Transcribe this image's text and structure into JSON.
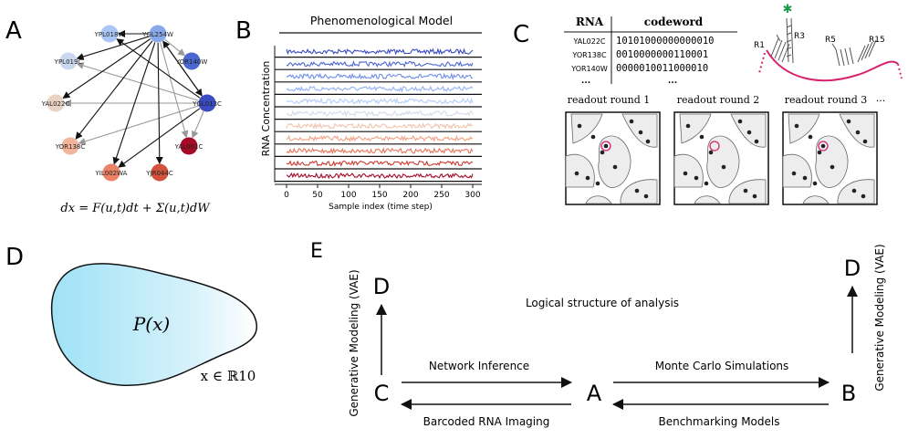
{
  "panel_letters": {
    "a": "A",
    "b": "B",
    "c": "C",
    "d": "D",
    "e": "E"
  },
  "panel_a": {
    "nodes": [
      {
        "label": "YPL018W",
        "color": "#a9c6f4"
      },
      {
        "label": "YGL254W",
        "color": "#87a9ea"
      },
      {
        "label": "YOR140W",
        "color": "#4b68d0"
      },
      {
        "label": "YGL013C",
        "color": "#3a4cc0"
      },
      {
        "label": "YAL001C",
        "color": "#a50a26"
      },
      {
        "label": "YJR044C",
        "color": "#d2523e"
      },
      {
        "label": "YIL002WA",
        "color": "#ec8166"
      },
      {
        "label": "YOR138C",
        "color": "#f2b49a"
      },
      {
        "label": "YAL022C",
        "color": "#ead2c3"
      },
      {
        "label": "YPL019C",
        "color": "#c9d8ef"
      }
    ],
    "equation": "dx = F(u,t)dt + Σ(u,t)dW"
  },
  "panel_b": {
    "title": "Phenomenological Model",
    "ylabel": "RNA Concentration",
    "xlabel": "Sample index (time step)",
    "xticks": [
      "0",
      "50",
      "100",
      "150",
      "200",
      "250",
      "300"
    ]
  },
  "chart_data": {
    "type": "line",
    "title": "Phenomenological Model",
    "xlabel": "Sample index (time step)",
    "ylabel": "RNA Concentration",
    "xlim": [
      0,
      300
    ],
    "series_colors": [
      "#3a4cc0",
      "#4b68d0",
      "#6f8ee6",
      "#92b1f5",
      "#b5cdfa",
      "#d4dbe6",
      "#f0c4ae",
      "#f2a184",
      "#e67658",
      "#c93a31",
      "#a50a26"
    ]
  },
  "panel_c": {
    "table_header_rna": "RNA",
    "table_header_code": "codeword",
    "rows": [
      {
        "rna": "YAL022C",
        "code": "10101000000000010"
      },
      {
        "rna": "YOR138C",
        "code": "0010000000110001"
      },
      {
        "rna": "YOR140W",
        "code": "0000010011000010"
      }
    ],
    "ellipsis": "...",
    "probe_labels": {
      "r1": "R1",
      "r3": "R3",
      "r5": "R5",
      "r15": "R15"
    },
    "rounds": [
      "readout round 1",
      "readout round 2",
      "readout round 3"
    ],
    "rounds_ellipsis": "..."
  },
  "panel_d": {
    "distribution": "P(x)",
    "domain": "x ∈ ℝ10"
  },
  "panel_e": {
    "title": "Logical structure of analysis",
    "node_a": "A",
    "node_b": "B",
    "node_c": "C",
    "node_d_left": "D",
    "node_d_right": "D",
    "label_left_vertical": "Generative Modeling (VAE)",
    "label_right_vertical": "Generative Modeling (VAE)",
    "network_inference": "Network Inference",
    "barcoded_imaging": "Barcoded RNA Imaging",
    "monte_carlo": "Monte Carlo Simulations",
    "benchmarking": "Benchmarking Models"
  }
}
